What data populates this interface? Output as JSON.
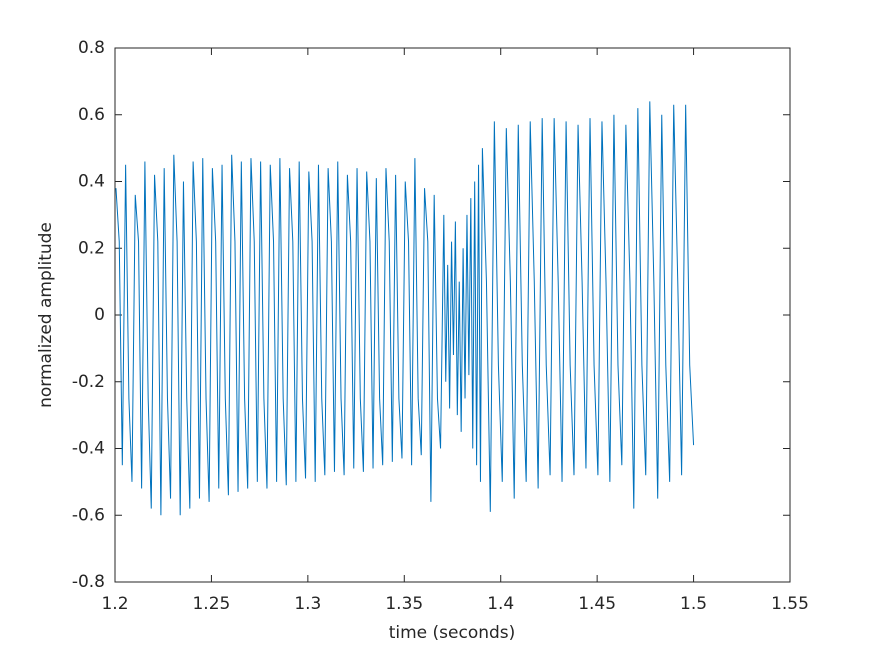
{
  "chart_data": {
    "type": "line",
    "xlabel": "time (seconds)",
    "ylabel": "normalized amplitude",
    "xlim": [
      1.2,
      1.55
    ],
    "xticks": [
      1.2,
      1.25,
      1.3,
      1.35,
      1.4,
      1.45,
      1.5,
      1.55
    ],
    "ylim": [
      -0.8,
      0.8
    ],
    "yticks": [
      -0.8,
      -0.6,
      -0.4,
      -0.2,
      0,
      0.2,
      0.4,
      0.6,
      0.8
    ],
    "grid": false,
    "x": [
      1.2005,
      1.2022,
      1.2038,
      1.2055,
      1.2072,
      1.2088,
      1.2105,
      1.2122,
      1.2138,
      1.2155,
      1.2172,
      1.2188,
      1.2205,
      1.2222,
      1.2238,
      1.2255,
      1.2272,
      1.2288,
      1.2305,
      1.2322,
      1.2338,
      1.2355,
      1.2372,
      1.2388,
      1.2405,
      1.2422,
      1.2438,
      1.2455,
      1.2472,
      1.2488,
      1.2505,
      1.2522,
      1.2538,
      1.2555,
      1.2572,
      1.2588,
      1.2605,
      1.2622,
      1.2638,
      1.2655,
      1.2672,
      1.2688,
      1.2705,
      1.2722,
      1.2738,
      1.2755,
      1.2772,
      1.2788,
      1.2805,
      1.2822,
      1.2838,
      1.2855,
      1.2872,
      1.2888,
      1.2905,
      1.2922,
      1.2938,
      1.2955,
      1.2972,
      1.2988,
      1.3005,
      1.3022,
      1.3038,
      1.3055,
      1.3072,
      1.3088,
      1.3105,
      1.3122,
      1.3138,
      1.3155,
      1.3172,
      1.3188,
      1.3205,
      1.3222,
      1.3238,
      1.3255,
      1.3272,
      1.3288,
      1.3305,
      1.3322,
      1.3338,
      1.3355,
      1.3372,
      1.3388,
      1.3405,
      1.3422,
      1.3438,
      1.3455,
      1.3472,
      1.3488,
      1.3505,
      1.3522,
      1.3538,
      1.3555,
      1.3572,
      1.3588,
      1.3605,
      1.3622,
      1.3638,
      1.3655,
      1.3672,
      1.3688,
      1.3705,
      1.3715,
      1.3725,
      1.3735,
      1.3745,
      1.3755,
      1.3765,
      1.3775,
      1.3785,
      1.3795,
      1.3805,
      1.3815,
      1.3825,
      1.3835,
      1.3845,
      1.3855,
      1.3865,
      1.3875,
      1.3885,
      1.3895,
      1.3905,
      1.3926,
      1.3946,
      1.3967,
      1.3988,
      1.4008,
      1.4029,
      1.405,
      1.407,
      1.4091,
      1.4112,
      1.4132,
      1.4153,
      1.4174,
      1.4194,
      1.4215,
      1.4236,
      1.4256,
      1.4277,
      1.4298,
      1.4318,
      1.4339,
      1.436,
      1.438,
      1.4401,
      1.4422,
      1.4442,
      1.4463,
      1.4484,
      1.4504,
      1.4525,
      1.4546,
      1.4566,
      1.4587,
      1.4608,
      1.4628,
      1.4649,
      1.467,
      1.469,
      1.4711,
      1.4732,
      1.4752,
      1.4773,
      1.4794,
      1.4814,
      1.4835,
      1.4856,
      1.4876,
      1.4897,
      1.4918,
      1.4938,
      1.4959,
      1.498,
      1.5
    ],
    "series": [
      {
        "color": "#0072bd",
        "values": [
          0.38,
          0.22,
          -0.45,
          0.45,
          -0.25,
          -0.5,
          0.36,
          0.22,
          -0.52,
          0.46,
          -0.25,
          -0.58,
          0.42,
          0.22,
          -0.6,
          0.44,
          -0.25,
          -0.55,
          0.48,
          0.22,
          -0.6,
          0.4,
          -0.25,
          -0.58,
          0.46,
          0.22,
          -0.55,
          0.47,
          -0.25,
          -0.56,
          0.44,
          0.22,
          -0.52,
          0.45,
          -0.25,
          -0.54,
          0.48,
          0.22,
          -0.53,
          0.46,
          -0.25,
          -0.52,
          0.47,
          0.22,
          -0.5,
          0.46,
          -0.25,
          -0.52,
          0.45,
          0.22,
          -0.5,
          0.47,
          -0.25,
          -0.51,
          0.44,
          0.22,
          -0.5,
          0.46,
          -0.25,
          -0.49,
          0.43,
          0.22,
          -0.5,
          0.45,
          -0.25,
          -0.48,
          0.44,
          0.22,
          -0.47,
          0.46,
          -0.25,
          -0.48,
          0.42,
          0.22,
          -0.46,
          0.44,
          -0.25,
          -0.47,
          0.43,
          0.22,
          -0.46,
          0.41,
          -0.25,
          -0.45,
          0.44,
          0.22,
          -0.44,
          0.42,
          -0.25,
          -0.43,
          0.4,
          0.22,
          -0.45,
          0.47,
          -0.25,
          -0.42,
          0.38,
          0.22,
          -0.56,
          0.36,
          -0.25,
          -0.4,
          0.3,
          -0.2,
          0.15,
          -0.28,
          0.22,
          -0.12,
          0.28,
          -0.3,
          0.1,
          -0.35,
          0.2,
          -0.25,
          0.3,
          -0.18,
          0.35,
          -0.4,
          0.4,
          -0.45,
          0.45,
          -0.5,
          0.5,
          0.1,
          -0.59,
          0.58,
          -0.15,
          -0.5,
          0.56,
          0.1,
          -0.55,
          0.57,
          -0.15,
          -0.5,
          0.58,
          0.1,
          -0.52,
          0.59,
          -0.15,
          -0.48,
          0.59,
          0.1,
          -0.5,
          0.58,
          -0.15,
          -0.48,
          0.57,
          0.1,
          -0.46,
          0.59,
          -0.15,
          -0.48,
          0.58,
          0.1,
          -0.5,
          0.6,
          -0.15,
          -0.45,
          0.57,
          0.1,
          -0.58,
          0.62,
          -0.15,
          -0.48,
          0.64,
          0.1,
          -0.55,
          0.6,
          -0.15,
          -0.5,
          0.63,
          0.1,
          -0.48,
          0.63,
          -0.15,
          -0.39
        ]
      }
    ]
  }
}
